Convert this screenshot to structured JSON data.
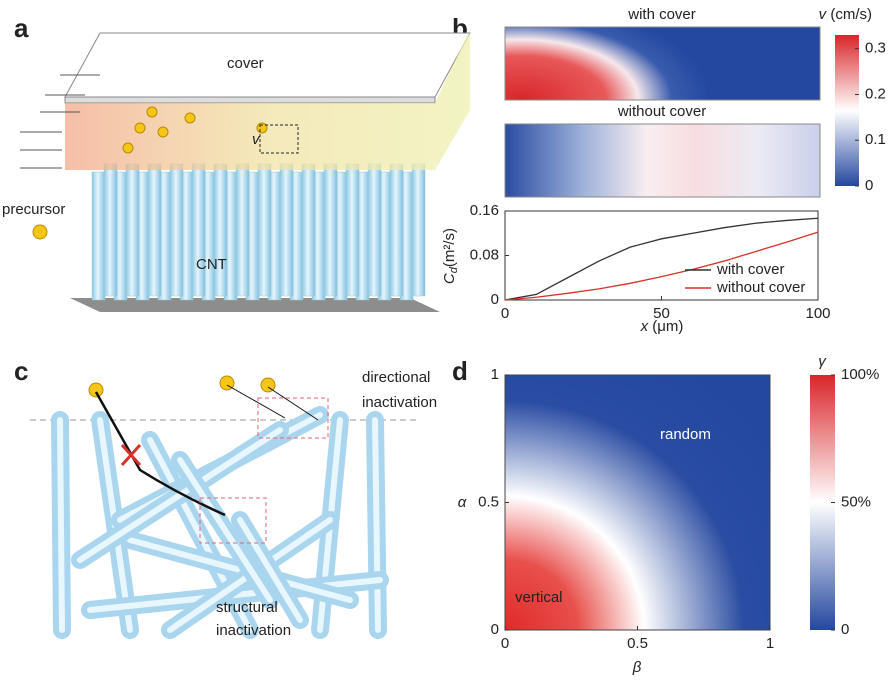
{
  "panel_labels": [
    "a",
    "b",
    "c",
    "d"
  ],
  "diagram_a": {
    "cover": "cover",
    "precursor": "precursor",
    "cnt": "CNT",
    "velocity": "v"
  },
  "diagram_c": {
    "directional_inactivation": [
      "directional",
      "inactivation"
    ],
    "structural_inactivation": [
      "structural",
      "inactivation"
    ]
  },
  "chart_data": [
    {
      "type": "heatmap-pair",
      "titles": [
        "with cover",
        "without cover"
      ],
      "colorbar_symbol": "v",
      "colorbar_unit": "(cm/s)",
      "colorbar_lim": [
        0,
        0.33
      ],
      "colorbar_ticks": [
        0,
        0.1,
        0.2,
        0.3
      ]
    },
    {
      "type": "line",
      "xlabel_symbol": "x",
      "xlabel_unit": "(μm)",
      "ylabel_symbol": "C",
      "ylabel_subscript": "d",
      "ylabel_unit": "(m²/s)",
      "xlim": [
        0,
        100
      ],
      "ylim": [
        0,
        0.16
      ],
      "xticks": [
        0,
        50,
        100
      ],
      "yticks": [
        0,
        0.08,
        0.16
      ],
      "legend": "lower right",
      "x": [
        0,
        10,
        20,
        30,
        40,
        50,
        60,
        70,
        80,
        90,
        100
      ],
      "series": [
        {
          "name": "with cover",
          "color": "#333333",
          "values": [
            0,
            0.01,
            0.04,
            0.07,
            0.095,
            0.11,
            0.12,
            0.13,
            0.138,
            0.143,
            0.147
          ]
        },
        {
          "name": "without cover",
          "color": "#d9302a",
          "values": [
            0,
            0.005,
            0.012,
            0.02,
            0.03,
            0.042,
            0.055,
            0.07,
            0.087,
            0.104,
            0.122
          ]
        }
      ]
    },
    {
      "type": "heatmap",
      "xlabel": "β",
      "ylabel": "α",
      "xlim": [
        0,
        1
      ],
      "ylim": [
        0,
        1
      ],
      "xticks": [
        0,
        0.5,
        1
      ],
      "yticks": [
        0,
        0.5,
        1
      ],
      "colorbar_label": "γ",
      "colorbar_lim": [
        0,
        100
      ],
      "colorbar_ticks": [
        0,
        {
          "value": 50,
          "label": "50%"
        },
        {
          "value": 100,
          "label": "100%"
        }
      ],
      "annotations": [
        "random",
        "vertical"
      ]
    }
  ]
}
